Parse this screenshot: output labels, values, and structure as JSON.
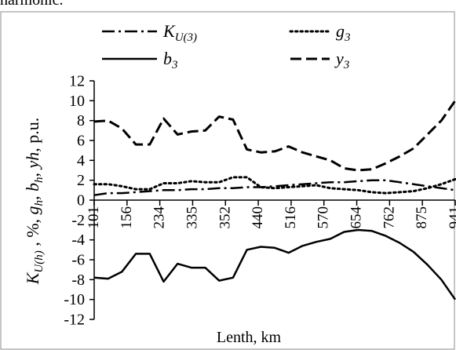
{
  "header_fragment": "harmonic.",
  "chart_data": {
    "type": "line",
    "xlabel": "Lenth, km",
    "ylabel_parts": [
      {
        "text": "K",
        "style": "italic"
      },
      {
        "text": "U(h)",
        "style": "italic-sub"
      },
      {
        "text": " , %, ",
        "style": "normal"
      },
      {
        "text": "g",
        "style": "italic"
      },
      {
        "text": "h",
        "style": "italic-sub"
      },
      {
        "text": ", ",
        "style": "normal"
      },
      {
        "text": "b",
        "style": "italic"
      },
      {
        "text": "h",
        "style": "italic-sub"
      },
      {
        "text": ", ",
        "style": "normal"
      },
      {
        "text": "yh",
        "style": "italic"
      },
      {
        "text": ", p.u.",
        "style": "normal"
      }
    ],
    "x_tick_labels": [
      "101",
      "156",
      "234",
      "335",
      "352",
      "440",
      "516",
      "570",
      "654",
      "762",
      "875",
      "941"
    ],
    "y_ticks": [
      12,
      10,
      8,
      6,
      4,
      2,
      0,
      -2,
      -4,
      -6,
      -8,
      -10,
      -12
    ],
    "ylim": [
      -12,
      12
    ],
    "grid": false,
    "legend_placement": "top",
    "series": [
      {
        "key": "K",
        "legend_main": "K",
        "legend_sub": "U(3)",
        "dash": "dashdot",
        "values": [
          0.5,
          0.7,
          0.7,
          0.8,
          0.9,
          1.0,
          1.0,
          1.1,
          1.1,
          1.2,
          1.2,
          1.3,
          1.3,
          1.4,
          1.5,
          1.6,
          1.7,
          1.8,
          1.8,
          1.9,
          2.0,
          2.0,
          1.8,
          1.6,
          1.4,
          1.2,
          1.0
        ]
      },
      {
        "key": "g",
        "legend_main": "g",
        "legend_sub": "3",
        "dash": "dotted",
        "values": [
          1.6,
          1.6,
          1.4,
          1.1,
          1.1,
          1.7,
          1.7,
          1.9,
          1.8,
          1.8,
          2.3,
          2.3,
          1.3,
          1.2,
          1.3,
          1.4,
          1.5,
          1.2,
          1.1,
          1.0,
          0.8,
          0.7,
          0.8,
          0.9,
          1.2,
          1.6,
          2.1
        ]
      },
      {
        "key": "b",
        "legend_main": "b",
        "legend_sub": "3",
        "dash": "solid",
        "values": [
          -7.8,
          -7.9,
          -7.2,
          -5.4,
          -5.4,
          -8.2,
          -6.4,
          -6.8,
          -6.8,
          -8.1,
          -7.8,
          -5.0,
          -4.7,
          -4.8,
          -5.3,
          -4.6,
          -4.2,
          -3.9,
          -3.2,
          -3.0,
          -3.1,
          -3.6,
          -4.3,
          -5.2,
          -6.5,
          -8.0,
          -10.0
        ]
      },
      {
        "key": "y",
        "legend_main": "y",
        "legend_sub": "3",
        "dash": "dashed",
        "values": [
          7.9,
          8.0,
          7.2,
          5.6,
          5.6,
          8.2,
          6.6,
          6.9,
          7.0,
          8.4,
          8.1,
          5.1,
          4.8,
          4.9,
          5.4,
          4.8,
          4.4,
          4.0,
          3.2,
          3.0,
          3.1,
          3.7,
          4.4,
          5.2,
          6.6,
          8.0,
          10.0
        ]
      }
    ]
  }
}
